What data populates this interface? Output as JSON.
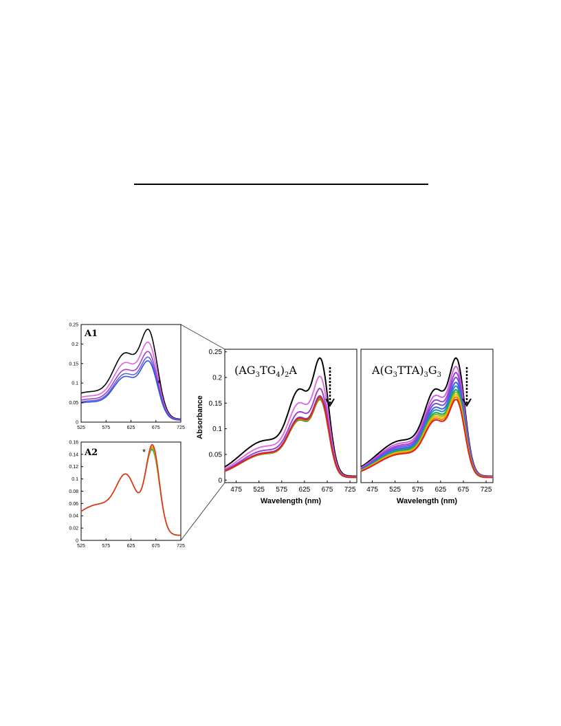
{
  "figure": {
    "main_ylabel": "Absorbance",
    "main_xlabel": "Wavelength (nm)"
  },
  "chart_data": [
    {
      "id": "A1",
      "type": "line",
      "title": "A1",
      "annotations": [
        "*"
      ],
      "xlim": [
        525,
        725
      ],
      "ylim": [
        0,
        0.25
      ],
      "xticks": [
        "525",
        "575",
        "625",
        "675",
        "725"
      ],
      "yticks": [
        "0",
        "0.05",
        "0.1",
        "0.15",
        "0.2",
        "0.25"
      ],
      "series": [
        {
          "color": "#000000",
          "scale": 1.0
        },
        {
          "color": "#e060e0",
          "scale": 0.86
        },
        {
          "color": "#a040d0",
          "scale": 0.76
        },
        {
          "color": "#6060e0",
          "scale": 0.7
        },
        {
          "color": "#3050e0",
          "scale": 0.66
        }
      ]
    },
    {
      "id": "A2",
      "type": "line",
      "title": "A2",
      "annotations": [
        "*"
      ],
      "xlim": [
        525,
        725
      ],
      "ylim": [
        0,
        0.16
      ],
      "xticks": [
        "525",
        "575",
        "625",
        "675",
        "725"
      ],
      "yticks": [
        "0",
        "0.02",
        "0.04",
        "0.06",
        "0.08",
        "0.1",
        "0.12",
        "0.14",
        "0.16"
      ],
      "series": [
        {
          "color": "#20a040",
          "scale": 1.0
        },
        {
          "color": "#80c020",
          "scale": 1.0
        },
        {
          "color": "#f0a000",
          "scale": 1.0
        },
        {
          "color": "#e03020",
          "scale": 1.0
        }
      ]
    },
    {
      "id": "main1",
      "type": "line",
      "title": "(AG3TG4)2A",
      "title_parts": {
        "a": "(AG",
        "s1": "3",
        "b": "TG",
        "s2": "4",
        "c": ")",
        "s3": "2",
        "d": "A"
      },
      "xlabel": "Wavelength (nm)",
      "ylabel": "Absorbance",
      "xlim": [
        450,
        740
      ],
      "ylim": [
        -0.005,
        0.255
      ],
      "xticks": [
        "475",
        "525",
        "575",
        "625",
        "675",
        "725"
      ],
      "yticks": [
        "0",
        "0.05",
        "0.1",
        "0.15",
        "0.2",
        "0.25"
      ],
      "series": [
        {
          "color": "#000000",
          "scale": 1.0
        },
        {
          "color": "#e070e0",
          "scale": 0.85
        },
        {
          "color": "#a040d0",
          "scale": 0.75
        },
        {
          "color": "#5050e0",
          "scale": 0.69
        },
        {
          "color": "#2060e0",
          "scale": 0.67
        },
        {
          "color": "#20a040",
          "scale": 0.66
        },
        {
          "color": "#f08000",
          "scale": 0.67
        },
        {
          "color": "#e02020",
          "scale": 0.68
        }
      ]
    },
    {
      "id": "main2",
      "type": "line",
      "title": "A(G3TTA)3G3",
      "title_parts": {
        "a": "A(G",
        "s1": "3",
        "b": "TTA)",
        "s2": "3",
        "c": "G",
        "s3": "3"
      },
      "xlabel": "Wavelength (nm)",
      "xlim": [
        450,
        740
      ],
      "ylim": [
        -0.005,
        0.255
      ],
      "xticks": [
        "475",
        "525",
        "575",
        "625",
        "675",
        "725"
      ],
      "yticks": [],
      "series": [
        {
          "color": "#000000",
          "scale": 1.0
        },
        {
          "color": "#d060e0",
          "scale": 0.93
        },
        {
          "color": "#a040d0",
          "scale": 0.88
        },
        {
          "color": "#7050e0",
          "scale": 0.84
        },
        {
          "color": "#4060e0",
          "scale": 0.8
        },
        {
          "color": "#2090c0",
          "scale": 0.77
        },
        {
          "color": "#20a050",
          "scale": 0.74
        },
        {
          "color": "#80c020",
          "scale": 0.72
        },
        {
          "color": "#f0c000",
          "scale": 0.7
        },
        {
          "color": "#f08000",
          "scale": 0.68
        },
        {
          "color": "#e02020",
          "scale": 0.66
        }
      ]
    }
  ]
}
